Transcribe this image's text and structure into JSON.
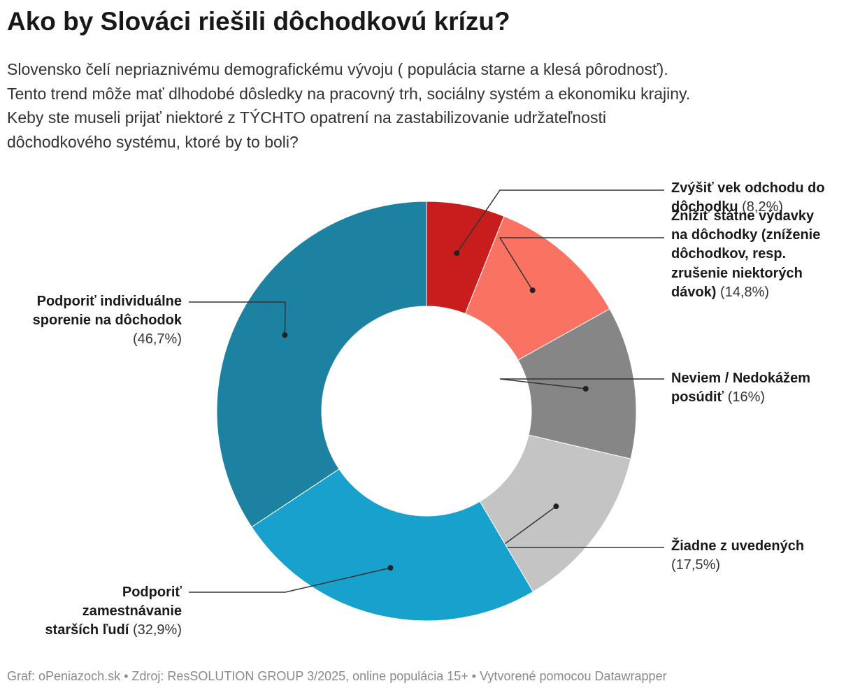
{
  "title": "Ako by Slováci riešili dôchodkovú krízu?",
  "subtitle_lines": [
    "Slovensko čelí nepriaznivému demografickému vývoju ( populácia starne a klesá pôrodnosť).",
    "Tento trend môže mať dlhodobé dôsledky na pracovný trh, sociálny systém a ekonomiku krajiny.",
    "Keby ste museli prijať niektoré z TÝCHTO opatrení na zastabilizovanie udržateľnosti",
    "dôchodkového systému, ktoré by to boli?"
  ],
  "chart_data": {
    "type": "pie",
    "variant": "donut",
    "categories": [
      "Zvýšiť vek odchodu do dôchodku",
      "Znížiť štátne výdavky na dôchodky (zníženie dôchodkov, resp. zrušenie niektorých dávok)",
      "Neviem / Nedokážem posúdiť",
      "Žiadne z uvedených",
      "Podporiť zamestnávanie starších ľudí",
      "Podporiť individuálne sporenie na dôchodok"
    ],
    "values": [
      8.2,
      14.8,
      16.0,
      17.5,
      32.9,
      46.7
    ],
    "colors": [
      "#c71e1d",
      "#fa7362",
      "#868686",
      "#c4c4c4",
      "#19a1cd",
      "#1d81a2"
    ],
    "labels": [
      {
        "lines": [
          "Zvýšiť vek odchodu do",
          "dôchodku"
        ],
        "pct": "(8,2%)"
      },
      {
        "lines": [
          "Znížiť štátne výdavky",
          "na dôchodky (zníženie",
          "dôchodkov, resp.",
          "zrušenie niektorých",
          "dávok)"
        ],
        "pct": "(14,8%)"
      },
      {
        "lines": [
          "Neviem / Nedokážem",
          "posúdiť"
        ],
        "pct": "(16%)"
      },
      {
        "lines": [
          "Žiadne z uvedených"
        ],
        "pct": "(17,5%)"
      },
      {
        "lines": [
          "Podporiť",
          "zamestnávanie",
          "starších ľudí"
        ],
        "pct": "(32,9%)"
      },
      {
        "lines": [
          "Podporiť individuálne",
          "sporenie na dôchodok"
        ],
        "pct": "(46,7%)"
      }
    ]
  },
  "footer": "Graf: oPeniazoch.sk • Zdroj: ResSOLUTION GROUP 3/2025, online populácia 15+ • Vytvorené pomocou Datawrapper"
}
